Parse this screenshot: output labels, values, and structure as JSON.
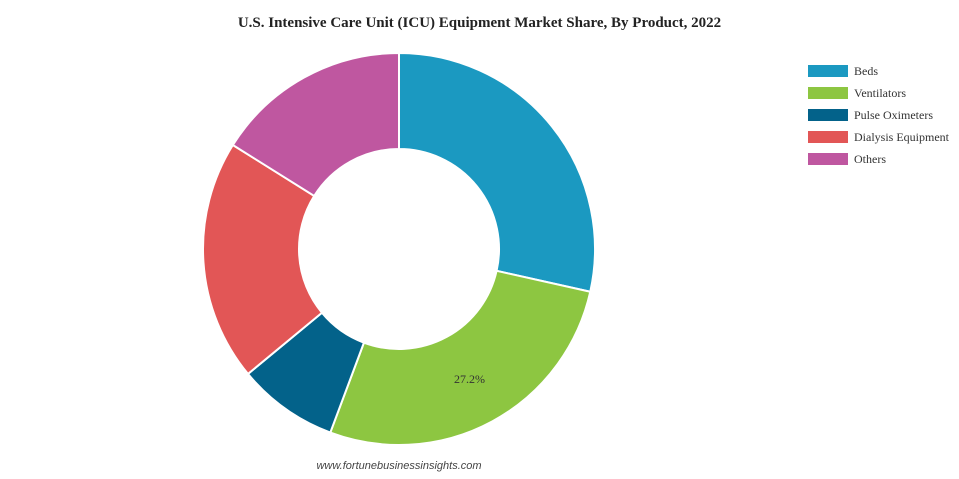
{
  "chart_data": {
    "type": "pie",
    "variant": "donut",
    "title": "U.S. Intensive Care Unit (ICU) Equipment Market Share, By Product, 2022",
    "categories": [
      "Beds",
      "Ventilators",
      "Pulse Oximeters",
      "Dialysis Equipment",
      "Others"
    ],
    "values": [
      28.5,
      27.2,
      8.3,
      19.9,
      16.1
    ],
    "colors": [
      "#1b99c1",
      "#8dc641",
      "#03628a",
      "#e25656",
      "#bf57a0"
    ],
    "data_labels": [
      "",
      "27.2%",
      "",
      "",
      ""
    ],
    "legend_position": "right"
  },
  "footer": {
    "source": "www.fortunebusinessinsights.com"
  }
}
